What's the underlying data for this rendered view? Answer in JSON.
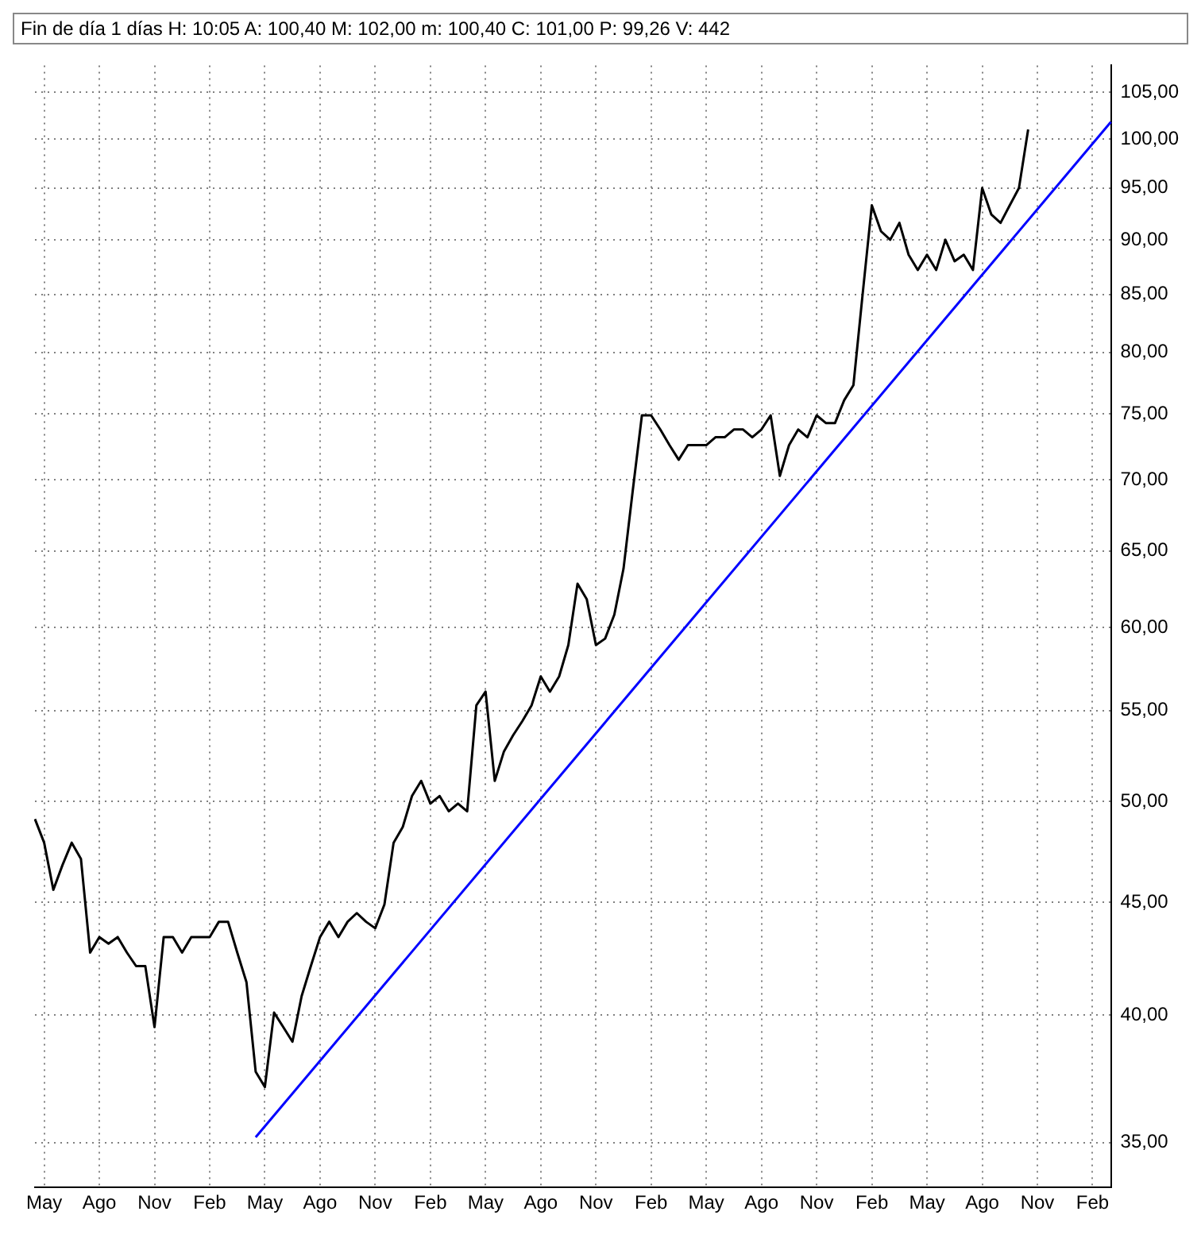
{
  "chart_data": {
    "type": "line",
    "title": "Fin de día 1 días H: 10:05 A: 100,40 M: 102,00 m: 100,40 C: 101,00 P: 99,26 V: 442",
    "categories": [
      null,
      "May",
      null,
      null,
      null,
      null,
      null,
      "Ago",
      null,
      null,
      null,
      null,
      null,
      "Nov",
      null,
      null,
      null,
      null,
      null,
      "Feb",
      null,
      null,
      null,
      null,
      null,
      "May",
      null,
      null,
      null,
      null,
      null,
      "Ago",
      null,
      null,
      null,
      null,
      null,
      "Nov",
      null,
      null,
      null,
      null,
      null,
      "Feb",
      null,
      null,
      null,
      null,
      null,
      "May",
      null,
      null,
      null,
      null,
      null,
      "Ago",
      null,
      null,
      null,
      null,
      null,
      "Nov",
      null,
      null,
      null,
      null,
      null,
      "Feb",
      null,
      null,
      null,
      null,
      null,
      "May",
      null,
      null,
      null,
      null,
      null,
      "Ago",
      null,
      null,
      null,
      null,
      null,
      "Nov",
      null,
      null,
      null,
      null,
      null,
      "Feb",
      null,
      null,
      null,
      null,
      null,
      "May",
      null,
      null,
      null,
      null,
      null,
      "Ago",
      null,
      null,
      null,
      null,
      null,
      "Nov",
      null,
      null,
      null,
      null,
      null,
      "Feb",
      null,
      null
    ],
    "series": [
      {
        "type": "line",
        "color": "#000000",
        "values": [
          49.1,
          47.9,
          45.6,
          46.8,
          47.9,
          47.1,
          42.7,
          43.4,
          43.1,
          43.4,
          42.7,
          42.1,
          42.1,
          39.5,
          43.4,
          43.4,
          42.7,
          43.4,
          43.4,
          43.4,
          44.1,
          44.1,
          42.7,
          41.4,
          37.7,
          37.1,
          40.1,
          39.5,
          38.9,
          40.8,
          42.1,
          43.4,
          44.1,
          43.4,
          44.1,
          44.5,
          44.1,
          43.8,
          44.9,
          47.9,
          48.7,
          50.3,
          51.1,
          49.9,
          50.3,
          49.5,
          49.9,
          49.5,
          55.3,
          56.1,
          51.1,
          52.7,
          53.6,
          54.4,
          55.3,
          57.0,
          56.1,
          57.0,
          58.9,
          62.8,
          61.8,
          58.9,
          59.3,
          60.8,
          63.8,
          69.2,
          74.9,
          74.9,
          73.8,
          72.6,
          71.5,
          72.6,
          72.6,
          72.6,
          73.2,
          73.2,
          73.8,
          73.8,
          73.2,
          73.8,
          74.9,
          70.3,
          72.6,
          73.8,
          73.2,
          74.9,
          74.3,
          74.3,
          76.1,
          77.3,
          85.0,
          93.3,
          90.8,
          90.0,
          91.6,
          88.6,
          87.2,
          88.6,
          87.2,
          90.0,
          88.0,
          88.6,
          87.2,
          95.0,
          92.4,
          91.6,
          93.3,
          95.0,
          101.0,
          null,
          null,
          null,
          null,
          null,
          null,
          null,
          null,
          null
        ]
      },
      {
        "type": "line",
        "color": "#0000ff",
        "values": [
          null,
          null,
          null,
          null,
          null,
          null,
          null,
          null,
          null,
          null,
          null,
          null,
          null,
          null,
          null,
          null,
          null,
          null,
          null,
          null,
          null,
          null,
          null,
          null,
          35.2,
          null,
          null,
          null,
          null,
          null,
          null,
          null,
          null,
          null,
          null,
          null,
          null,
          null,
          null,
          null,
          null,
          null,
          null,
          null,
          null,
          null,
          null,
          null,
          null,
          null,
          null,
          null,
          null,
          null,
          null,
          null,
          null,
          null,
          null,
          null,
          null,
          null,
          null,
          null,
          null,
          null,
          null,
          null,
          null,
          null,
          null,
          null,
          null,
          null,
          null,
          null,
          null,
          null,
          null,
          null,
          null,
          null,
          null,
          null,
          null,
          null,
          null,
          null,
          null,
          null,
          null,
          null,
          null,
          null,
          null,
          null,
          null,
          null,
          null,
          null,
          null,
          null,
          null,
          null,
          null,
          null,
          null,
          null,
          null,
          null,
          null,
          null,
          null,
          null,
          null,
          null,
          null,
          101.8
        ]
      }
    ],
    "log": "y",
    "ylim": [
      33.4,
      108
    ],
    "yticks": [
      {
        "value": 35,
        "label": "35,00"
      },
      {
        "value": 40,
        "label": "40,00"
      },
      {
        "value": 45,
        "label": "45,00"
      },
      {
        "value": 50,
        "label": "50,00"
      },
      {
        "value": 55,
        "label": "55,00"
      },
      {
        "value": 60,
        "label": "60,00"
      },
      {
        "value": 65,
        "label": "65,00"
      },
      {
        "value": 70,
        "label": "70,00"
      },
      {
        "value": 75,
        "label": "75,00"
      },
      {
        "value": 80,
        "label": "80,00"
      },
      {
        "value": 85,
        "label": "85,00"
      },
      {
        "value": 90,
        "label": "90,00"
      },
      {
        "value": 95,
        "label": "95,00"
      },
      {
        "value": 100,
        "label": "100,00"
      },
      {
        "value": 105,
        "label": "105,00"
      }
    ],
    "grid": true,
    "legend": false,
    "marker": "none",
    "line_style": "solid"
  }
}
